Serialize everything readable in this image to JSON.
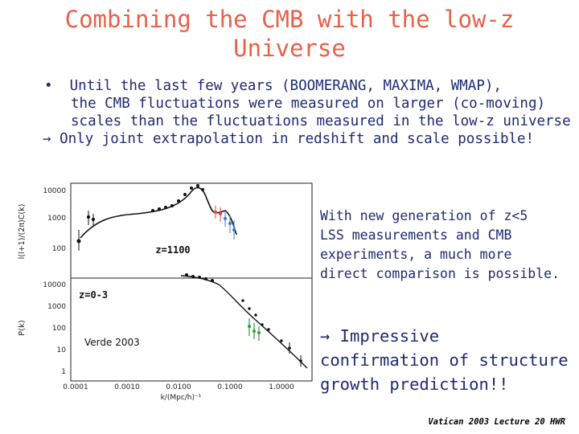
{
  "slide": {
    "title_line1": "Combining the CMB with the low-z",
    "title_line2": "Universe",
    "bullet_marker": "•",
    "bullet_line1": "Until the last few years (BOOMERANG, MAXIMA, WMAP),",
    "bullet_line2": "the CMB fluctuations were measured on larger (co-moving)",
    "bullet_line3": "scales than the fluctuations measured in the low-z universe",
    "arrow_line": "→ Only joint extrapolation in redshift and scale possible!",
    "right_line1": "With new generation of z<5",
    "right_line2": "LSS measurements and CMB",
    "right_line3": "experiments, a much more",
    "right_line4": "direct comparison is possible.",
    "impress_line1": "→ Impressive",
    "impress_line2": "confirmation of structure",
    "impress_line3": "growth prediction!!",
    "footer": "Vatican 2003 Lecture 20 HWR"
  },
  "figure": {
    "top_panel": {
      "ylabel": "l(l+1)/(2π)C(k)",
      "yticks": [
        "10000",
        "1000",
        "100"
      ],
      "label": "z=1100"
    },
    "bottom_panel": {
      "ylabel": "P(k)",
      "yticks": [
        "10000",
        "1000",
        "100",
        "10",
        "1"
      ],
      "label": "z=0-3",
      "credit": "Verde 2003"
    },
    "xticks": [
      "0.0001",
      "0.0010",
      "0.0100",
      "0.1000",
      "1.0000"
    ],
    "xlabel": "k/(Mpc/h)⁻¹"
  }
}
